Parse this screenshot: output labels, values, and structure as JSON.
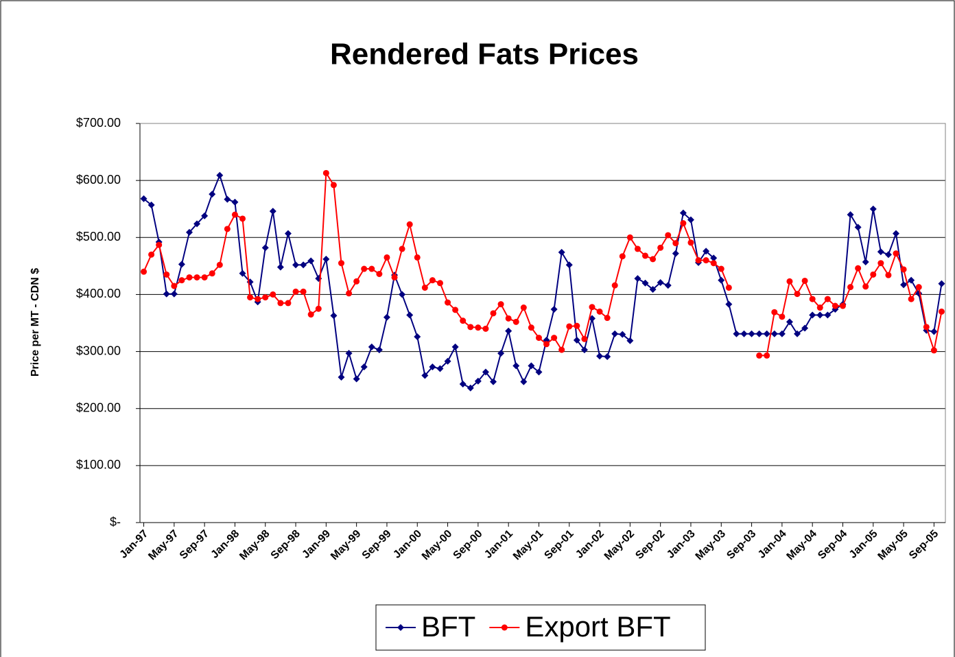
{
  "chart_data": {
    "type": "line",
    "title": "Rendered Fats Prices",
    "y_label": "Price per MT - CDN $",
    "categories": [
      "Jan-97",
      null,
      null,
      null,
      "May-97",
      null,
      null,
      null,
      "Sep-97",
      null,
      null,
      null,
      "Jan-98",
      null,
      null,
      null,
      "May-98",
      null,
      null,
      null,
      "Sep-98",
      null,
      null,
      null,
      "Jan-99",
      null,
      null,
      null,
      "May-99",
      null,
      null,
      null,
      "Sep-99",
      null,
      null,
      null,
      "Jan-00",
      null,
      null,
      null,
      "May-00",
      null,
      null,
      null,
      "Sep-00",
      null,
      null,
      null,
      "Jan-01",
      null,
      null,
      null,
      "May-01",
      null,
      null,
      null,
      "Sep-01",
      null,
      null,
      null,
      "Jan-02",
      null,
      null,
      null,
      "May-02",
      null,
      null,
      null,
      "Sep-02",
      null,
      null,
      null,
      "Jan-03",
      null,
      null,
      null,
      "May-03",
      null,
      null,
      null,
      "Sep-03",
      null,
      null,
      null,
      "Jan-04",
      null,
      null,
      null,
      "May-04",
      null,
      null,
      null,
      "Sep-04",
      null,
      null,
      null,
      "Jan-05",
      null,
      null,
      null,
      "May-05",
      null,
      null,
      null,
      "Sep-05",
      null
    ],
    "series": [
      {
        "name": "BFT",
        "color": "#000080",
        "marker": "diamond",
        "values": [
          568,
          557,
          492,
          401,
          401,
          453,
          509,
          524,
          538,
          576,
          609,
          567,
          562,
          437,
          422,
          387,
          482,
          546,
          448,
          507,
          452,
          452,
          459,
          428,
          462,
          363,
          255,
          297,
          252,
          273,
          308,
          303,
          360,
          434,
          400,
          364,
          326,
          258,
          273,
          270,
          283,
          308,
          243,
          236,
          248,
          264,
          247,
          297,
          336,
          275,
          247,
          275,
          264,
          320,
          374,
          474,
          452,
          320,
          303,
          358,
          292,
          291,
          331,
          330,
          319,
          428,
          420,
          409,
          421,
          416,
          472,
          543,
          531,
          456,
          476,
          464,
          425,
          383,
          331,
          331,
          331,
          331,
          331,
          331,
          331,
          352,
          331,
          341,
          364,
          364,
          364,
          374,
          383,
          540,
          518,
          457,
          550,
          475,
          470,
          507,
          417,
          425,
          402,
          337,
          335,
          419
        ]
      },
      {
        "name": "Export BFT",
        "color": "#ff0000",
        "marker": "circle",
        "values": [
          440,
          470,
          487,
          435,
          415,
          425,
          430,
          430,
          430,
          437,
          452,
          515,
          540,
          533,
          395,
          392,
          395,
          400,
          385,
          385,
          405,
          405,
          365,
          375,
          613,
          592,
          455,
          402,
          423,
          445,
          445,
          436,
          465,
          430,
          480,
          523,
          465,
          412,
          425,
          420,
          386,
          373,
          354,
          343,
          342,
          340,
          367,
          383,
          358,
          352,
          377,
          342,
          324,
          313,
          324,
          303,
          344,
          345,
          322,
          378,
          370,
          359,
          416,
          467,
          500,
          480,
          468,
          462,
          482,
          504,
          490,
          525,
          491,
          460,
          460,
          455,
          445,
          412,
          null,
          null,
          null,
          293,
          293,
          369,
          361,
          423,
          401,
          424,
          392,
          377,
          392,
          380,
          380,
          413,
          446,
          414,
          435,
          455,
          434,
          472,
          444,
          392,
          413,
          343,
          302,
          370
        ]
      }
    ],
    "ylim": [
      0,
      700
    ],
    "yticks": [
      {
        "value": 0,
        "label": "$-"
      },
      {
        "value": 100,
        "label": "$100.00"
      },
      {
        "value": 200,
        "label": "$200.00"
      },
      {
        "value": 300,
        "label": "$300.00"
      },
      {
        "value": 400,
        "label": "$400.00"
      },
      {
        "value": 500,
        "label": "$500.00"
      },
      {
        "value": 600,
        "label": "$600.00"
      },
      {
        "value": 700,
        "label": "$700.00"
      }
    ],
    "grid": true,
    "legend": "bottom"
  }
}
